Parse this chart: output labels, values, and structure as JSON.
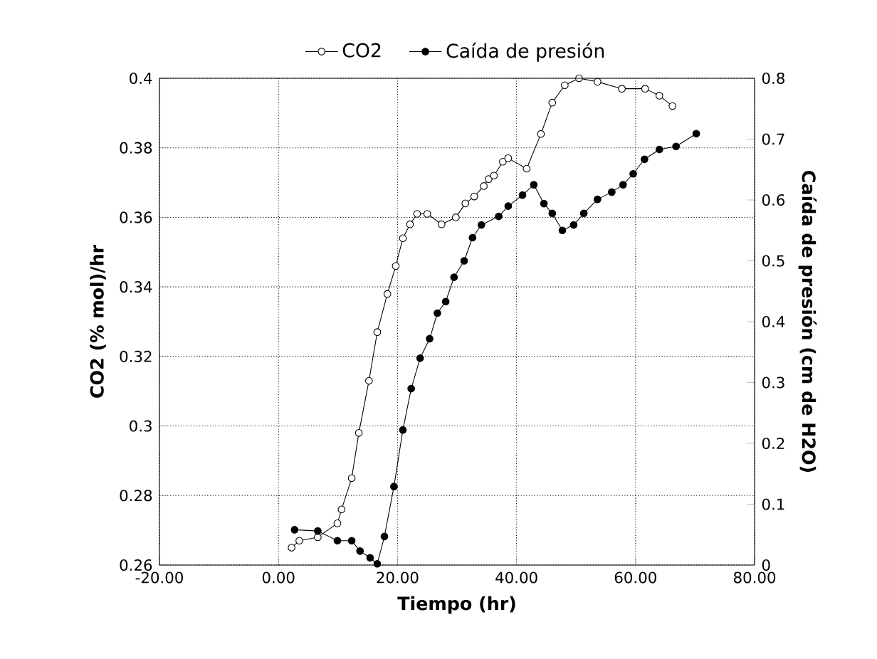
{
  "chart_data": {
    "type": "line",
    "xlabel": "Tiempo (hr)",
    "ylabel": "CO2 (% mol)/hr",
    "y2label": "Caída de presión (cm de H2O)",
    "xlim": [
      -20,
      80
    ],
    "xticks": [
      {
        "value": -20,
        "label": "-20.00"
      },
      {
        "value": 0,
        "label": "0.00"
      },
      {
        "value": 20,
        "label": "20.00"
      },
      {
        "value": 40,
        "label": "40.00"
      },
      {
        "value": 60,
        "label": "60.00"
      },
      {
        "value": 80,
        "label": "80.00"
      }
    ],
    "ylim": [
      0.26,
      0.4
    ],
    "yticks": [
      0.26,
      0.28,
      0.3,
      0.32,
      0.34,
      0.36,
      0.38,
      0.4
    ],
    "y2lim": [
      0,
      0.8
    ],
    "y2ticks": [
      0,
      0.1,
      0.2,
      0.3,
      0.4,
      0.5,
      0.6,
      0.7,
      0.8
    ],
    "grid": true,
    "legend": "top",
    "marker": "circle",
    "line_style": "solid",
    "series": [
      {
        "name": "CO2",
        "color": "#000000",
        "x": [
          2.2,
          3.5,
          6.6,
          9.9,
          10.6,
          12.3,
          13.5,
          15.2,
          16.6,
          18.3,
          19.7,
          20.9,
          22.1,
          23.3,
          25,
          27.4,
          29.8,
          31.4,
          32.9,
          34.5,
          35.3,
          36.2,
          37.7,
          38.6,
          41.7,
          44.1,
          46,
          48.1,
          50.5,
          53.6,
          57.7,
          61.6,
          64,
          66.2
        ],
        "values": [
          0.265,
          0.267,
          0.268,
          0.272,
          0.276,
          0.285,
          0.298,
          0.313,
          0.327,
          0.338,
          0.346,
          0.354,
          0.358,
          0.361,
          0.361,
          0.358,
          0.36,
          0.364,
          0.366,
          0.369,
          0.371,
          0.372,
          0.376,
          0.377,
          0.374,
          0.384,
          0.393,
          0.398,
          0.4,
          0.399,
          0.397,
          0.397,
          0.395,
          0.392
        ]
      },
      {
        "name": "Caída de presión",
        "color": "#000000",
        "axis": "y2",
        "x": [
          2.7,
          6.6,
          9.9,
          12.3,
          13.7,
          15.4,
          16.6,
          17.8,
          19.4,
          20.9,
          22.3,
          23.8,
          25.4,
          26.7,
          28.1,
          29.5,
          31.2,
          32.6,
          34.1,
          37,
          38.6,
          41,
          42.9,
          44.6,
          46,
          47.7,
          49.6,
          51.3,
          53.6,
          56,
          57.9,
          59.6,
          61.5,
          64,
          66.8,
          70.2
        ],
        "values": [
          0.058,
          0.056,
          0.04,
          0.04,
          0.023,
          0.012,
          0.002,
          0.047,
          0.129,
          0.222,
          0.29,
          0.34,
          0.372,
          0.414,
          0.433,
          0.473,
          0.5,
          0.538,
          0.559,
          0.573,
          0.59,
          0.608,
          0.625,
          0.594,
          0.578,
          0.55,
          0.559,
          0.578,
          0.601,
          0.613,
          0.625,
          0.643,
          0.667,
          0.683,
          0.688,
          0.709
        ]
      }
    ]
  }
}
